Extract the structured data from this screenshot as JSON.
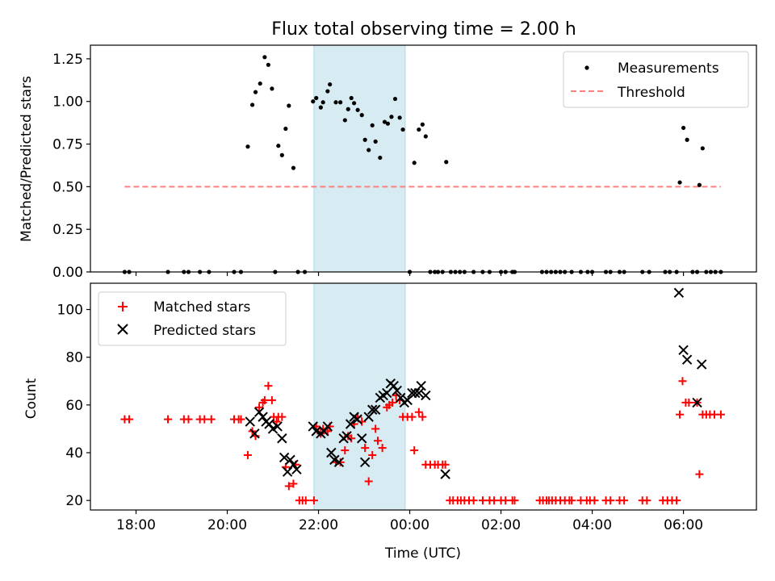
{
  "chart_data": [
    {
      "type": "scatter",
      "title": "Flux total observing time = 2.00 h",
      "xlabel": "",
      "ylabel": "Matched/Predicted stars",
      "xlim": [
        17.0,
        31.6
      ],
      "ylim": [
        0,
        1.33
      ],
      "yticks": [
        0.0,
        0.25,
        0.5,
        0.75,
        1.0,
        1.25
      ],
      "ytick_labels": [
        "0.00",
        "0.25",
        "0.50",
        "0.75",
        "1.00",
        "1.25"
      ],
      "shaded_region": [
        21.9,
        23.9
      ],
      "legend_position": "upper right",
      "series": [
        {
          "name": "Measurements",
          "marker": "dot",
          "color": "#000000",
          "x": [
            17.75,
            17.85,
            18.7,
            19.05,
            19.15,
            19.4,
            19.6,
            20.15,
            20.3,
            20.45,
            20.55,
            20.62,
            20.72,
            20.82,
            20.9,
            20.98,
            21.05,
            21.12,
            21.2,
            21.28,
            21.35,
            21.45,
            21.55,
            21.7,
            21.88,
            21.95,
            22.05,
            22.1,
            22.2,
            22.25,
            22.38,
            22.48,
            22.58,
            22.65,
            22.72,
            22.78,
            22.86,
            22.95,
            23.02,
            23.1,
            23.18,
            23.25,
            23.35,
            23.45,
            23.52,
            23.6,
            23.68,
            23.78,
            23.85,
            24.0,
            24.1,
            24.2,
            24.28,
            24.35,
            24.45,
            24.55,
            24.62,
            24.72,
            24.8,
            24.9,
            25.0,
            25.1,
            25.2,
            25.4,
            25.6,
            25.75,
            26.0,
            26.1,
            26.25,
            26.3,
            26.9,
            27.0,
            27.1,
            27.2,
            27.3,
            27.4,
            27.55,
            27.75,
            27.9,
            28.0,
            28.3,
            28.4,
            28.6,
            28.7,
            29.1,
            29.25,
            29.6,
            29.7,
            29.85,
            29.92,
            30.0,
            30.08,
            30.2,
            30.3,
            30.35,
            30.42,
            30.5,
            30.6,
            30.7,
            30.82
          ],
          "y": [
            0,
            0,
            0,
            0,
            0,
            0,
            0,
            0,
            0,
            0.735,
            0.98,
            1.055,
            1.105,
            1.26,
            1.215,
            1.075,
            0,
            0.74,
            0.685,
            0.84,
            0.975,
            0.61,
            0,
            0,
            1.0,
            1.02,
            0.965,
            0.995,
            1.06,
            1.1,
            0.995,
            0.995,
            0.89,
            0.955,
            1.02,
            0.99,
            0.95,
            0.92,
            0.775,
            0.715,
            0.86,
            0.765,
            0.67,
            0.88,
            0.87,
            0.91,
            1.015,
            0.905,
            0.835,
            0,
            0.64,
            0.835,
            0.865,
            0.795,
            0,
            0,
            0,
            0,
            0.645,
            0,
            0,
            0,
            0,
            0,
            0,
            0,
            0,
            0,
            0,
            0,
            0,
            0,
            0,
            0,
            0,
            0,
            0,
            0,
            0,
            0,
            0,
            0,
            0,
            0,
            0,
            0,
            0,
            0,
            0,
            0.525,
            0.845,
            0.775,
            0,
            0,
            0.51,
            0.725,
            0,
            0,
            0,
            0
          ]
        },
        {
          "name": "Threshold",
          "line_style": "dashed",
          "color": "#ff7f7f",
          "x": [
            17.75,
            30.82
          ],
          "y": [
            0.5,
            0.5
          ]
        }
      ]
    },
    {
      "type": "scatter",
      "title": "",
      "xlabel": "Time (UTC)",
      "ylabel": "Count",
      "xlim": [
        17.0,
        31.6
      ],
      "ylim": [
        16,
        111
      ],
      "x_is_time_hours": true,
      "xticks": [
        18,
        20,
        22,
        24,
        26,
        28,
        30
      ],
      "xtick_labels": [
        "18:00",
        "20:00",
        "22:00",
        "00:00",
        "02:00",
        "04:00",
        "06:00"
      ],
      "yticks": [
        20,
        40,
        60,
        80,
        100
      ],
      "ytick_labels": [
        "20",
        "40",
        "60",
        "80",
        "100"
      ],
      "shaded_region": [
        21.9,
        23.9
      ],
      "legend_position": "upper left",
      "series": [
        {
          "name": "Matched stars",
          "marker": "plus",
          "color": "#ff0000",
          "x": [
            17.75,
            17.85,
            18.7,
            19.05,
            19.15,
            19.4,
            19.5,
            19.65,
            20.15,
            20.25,
            20.3,
            20.45,
            20.55,
            20.62,
            20.7,
            20.78,
            20.82,
            20.9,
            20.98,
            21.02,
            21.08,
            21.12,
            21.2,
            21.28,
            21.35,
            21.45,
            21.5,
            21.58,
            21.65,
            21.72,
            21.9,
            21.95,
            22.05,
            22.1,
            22.2,
            22.25,
            22.38,
            22.48,
            22.58,
            22.65,
            22.72,
            22.78,
            22.86,
            22.95,
            23.02,
            23.1,
            23.18,
            23.25,
            23.3,
            23.4,
            23.5,
            23.55,
            23.62,
            23.7,
            23.78,
            23.85,
            23.95,
            24.05,
            24.1,
            24.2,
            24.28,
            24.35,
            24.45,
            24.55,
            24.62,
            24.72,
            24.78,
            24.88,
            24.95,
            25.05,
            25.12,
            25.2,
            25.3,
            25.4,
            25.6,
            25.75,
            25.85,
            26.0,
            26.1,
            26.25,
            26.3,
            26.85,
            26.92,
            27.0,
            27.05,
            27.12,
            27.2,
            27.3,
            27.4,
            27.5,
            27.55,
            27.75,
            27.88,
            27.95,
            28.05,
            28.3,
            28.4,
            28.6,
            28.7,
            29.1,
            29.2,
            29.55,
            29.65,
            29.75,
            29.85,
            29.92,
            29.98,
            30.05,
            30.12,
            30.3,
            30.35,
            30.42,
            30.5,
            30.58,
            30.68,
            30.82
          ],
          "y": [
            54,
            54,
            54,
            54,
            54,
            54,
            54,
            54,
            54,
            54,
            54,
            39,
            49,
            47,
            59,
            61,
            62,
            68,
            62,
            55,
            53,
            55,
            55,
            34,
            26,
            27,
            35,
            20,
            20,
            20,
            20,
            51,
            48,
            50,
            49,
            51,
            36,
            36,
            41,
            47,
            46,
            52,
            55,
            53,
            42,
            28,
            39,
            50,
            45,
            42,
            59,
            60,
            61,
            64,
            62,
            55,
            55,
            55,
            41,
            57,
            55,
            35,
            35,
            35,
            35,
            35,
            35,
            20,
            20,
            20,
            20,
            20,
            20,
            20,
            20,
            20,
            20,
            20,
            20,
            20,
            20,
            20,
            20,
            20,
            20,
            20,
            20,
            20,
            20,
            20,
            20,
            20,
            20,
            20,
            20,
            20,
            20,
            20,
            20,
            20,
            20,
            20,
            20,
            20,
            20,
            56,
            70,
            61,
            61,
            61,
            31,
            56,
            56,
            56,
            56,
            56
          ]
        },
        {
          "name": "Predicted stars",
          "marker": "x",
          "color": "#000000",
          "x": [
            20.5,
            20.6,
            20.7,
            20.78,
            20.85,
            20.92,
            21.0,
            21.1,
            21.2,
            21.25,
            21.32,
            21.38,
            21.45,
            21.52,
            21.88,
            21.95,
            22.05,
            22.12,
            22.2,
            22.28,
            22.35,
            22.45,
            22.55,
            22.62,
            22.7,
            22.78,
            22.85,
            22.95,
            23.02,
            23.1,
            23.18,
            23.25,
            23.35,
            23.42,
            23.5,
            23.58,
            23.65,
            23.72,
            23.8,
            23.88,
            23.95,
            24.05,
            24.12,
            24.2,
            24.25,
            24.35,
            24.78,
            29.9,
            30.0,
            30.08,
            30.3,
            30.4
          ],
          "y": [
            53,
            48,
            57,
            55,
            53,
            52,
            50,
            51,
            46,
            38,
            32,
            37,
            35,
            33,
            51,
            49,
            48,
            49,
            51,
            40,
            37,
            36,
            46,
            47,
            52,
            55,
            54,
            46,
            36,
            55,
            58,
            58,
            63,
            64,
            65,
            69,
            68,
            66,
            63,
            61,
            62,
            65,
            65,
            65,
            68,
            64,
            31,
            107,
            83,
            79,
            61,
            77
          ]
        }
      ]
    }
  ]
}
